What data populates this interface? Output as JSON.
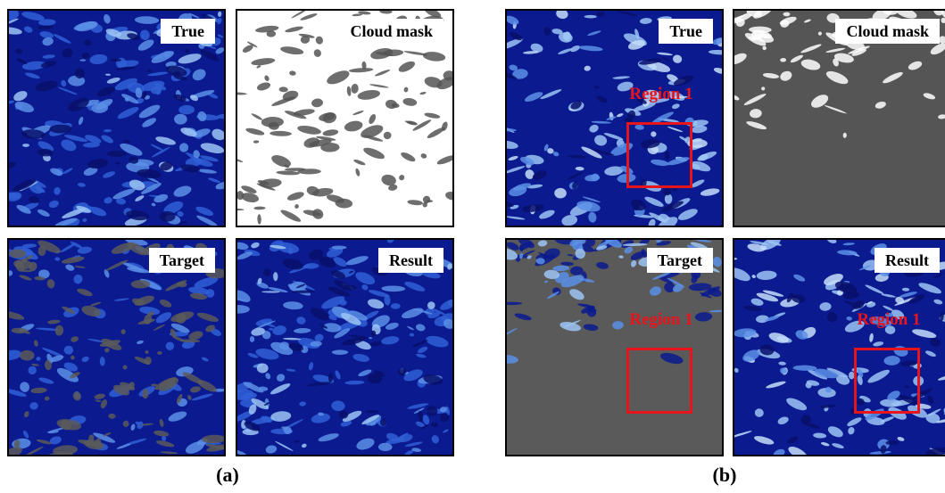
{
  "panels": [
    {
      "caption": "(a)",
      "tiles": [
        {
          "label": "True"
        },
        {
          "label": "Cloud mask"
        },
        {
          "label": "Target"
        },
        {
          "label": "Result"
        }
      ]
    },
    {
      "caption": "(b)",
      "tiles": [
        {
          "label": "True",
          "region": "Region 1"
        },
        {
          "label": "Cloud mask"
        },
        {
          "label": "Target",
          "region": "Region 1"
        },
        {
          "label": "Result",
          "region": "Region 1"
        }
      ]
    }
  ]
}
